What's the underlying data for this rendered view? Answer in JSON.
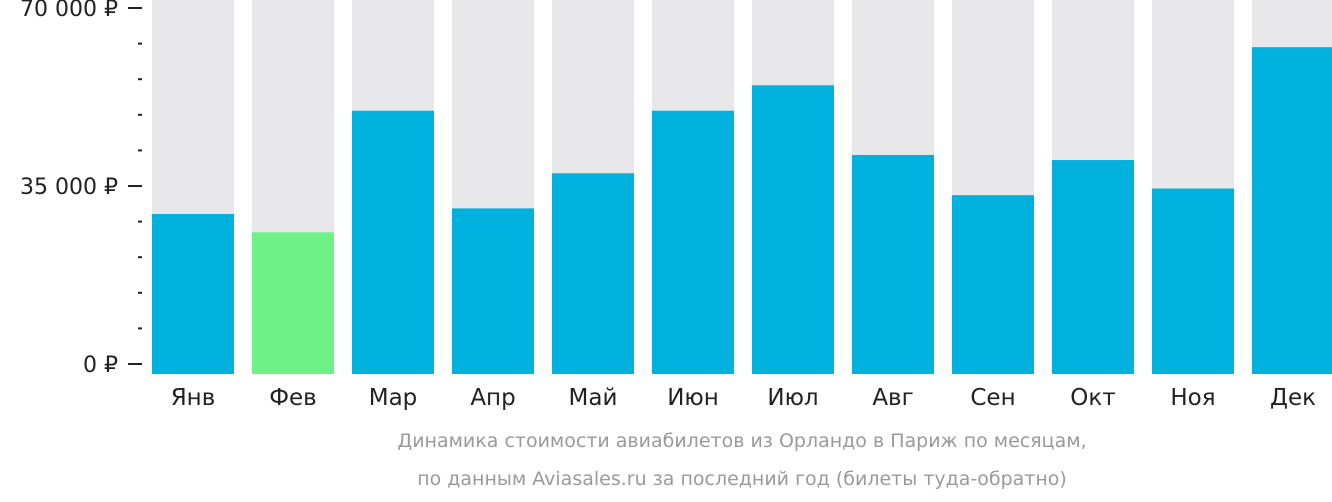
{
  "chart_data": {
    "type": "bar",
    "categories": [
      "Янв",
      "Фев",
      "Мар",
      "Апр",
      "Май",
      "Июн",
      "Июл",
      "Авг",
      "Сен",
      "Окт",
      "Ноя",
      "Дек"
    ],
    "values": [
      29500,
      25900,
      49800,
      30600,
      37500,
      49800,
      54800,
      41100,
      33200,
      40100,
      34500,
      62300
    ],
    "highlight_index": 1,
    "ylim": [
      0,
      70000
    ],
    "y_ticks": [
      {
        "value": 0,
        "label": "0 ₽"
      },
      {
        "value": 35000,
        "label": "35 000 ₽"
      },
      {
        "value": 70000,
        "label": "70 000 ₽"
      }
    ],
    "minor_tick_step": 7000,
    "colors": {
      "bar": "#00b1dd",
      "highlight": "#6ef287",
      "background_bar": "#e8e8ea"
    },
    "caption": [
      "Динамика стоимости авиабилетов из Орландо в Париж по месяцам,",
      "по данным Aviasales.ru за последний год (билеты туда-обратно)"
    ]
  }
}
